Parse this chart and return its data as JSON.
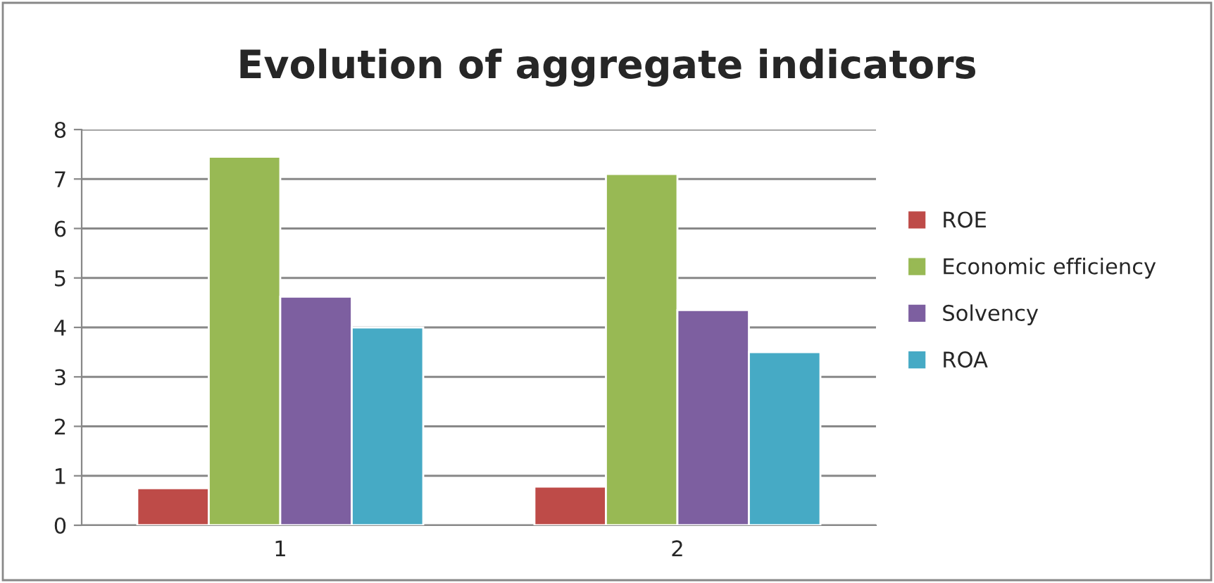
{
  "chart_data": {
    "type": "bar",
    "title": "Evolution of aggregate indicators",
    "categories": [
      "1",
      "2"
    ],
    "series": [
      {
        "name": "ROE",
        "color": "#be4b48",
        "values": [
          0.75,
          0.78
        ]
      },
      {
        "name": "Economic efficiency",
        "color": "#98b954",
        "values": [
          7.45,
          7.1
        ]
      },
      {
        "name": "Solvency",
        "color": "#7d5fa0",
        "values": [
          4.62,
          4.35
        ]
      },
      {
        "name": "ROA",
        "color": "#46aac5",
        "values": [
          4.0,
          3.5
        ]
      }
    ],
    "ylim": [
      0,
      8
    ],
    "yticks": [
      0,
      1,
      2,
      3,
      4,
      5,
      6,
      7,
      8
    ],
    "grid": "y",
    "legend": "right"
  }
}
